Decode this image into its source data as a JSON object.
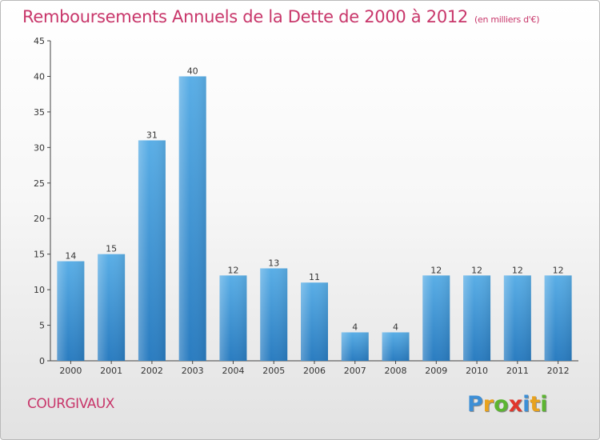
{
  "chart_data": {
    "type": "bar",
    "title": "Remboursements Annuels de la Dette de 2000 à 2012",
    "subtitle": "(en milliers d'€)",
    "categories": [
      "2000",
      "2001",
      "2002",
      "2003",
      "2004",
      "2005",
      "2006",
      "2007",
      "2008",
      "2009",
      "2010",
      "2011",
      "2012"
    ],
    "values": [
      14,
      15,
      31,
      40,
      12,
      13,
      11,
      4,
      4,
      12,
      12,
      12,
      12
    ],
    "ylim": [
      0,
      45
    ],
    "yticks": [
      0,
      5,
      10,
      15,
      20,
      25,
      30,
      35,
      40,
      45
    ],
    "xlabel": "",
    "ylabel": "",
    "grid": false,
    "colors": {
      "bar_top": "#5aaee6",
      "bar_bottom": "#2a7cc0",
      "title": "#c8366a"
    }
  },
  "footer": {
    "town": "COURGIVAUX",
    "logo_letters": [
      {
        "char": "P",
        "color": "#3d8fd6"
      },
      {
        "char": "r",
        "color": "#e8a21e"
      },
      {
        "char": "o",
        "color": "#5cb531"
      },
      {
        "char": "x",
        "color": "#e0362c"
      },
      {
        "char": "i",
        "color": "#3d8fd6"
      },
      {
        "char": "t",
        "color": "#e8a21e"
      },
      {
        "char": "i",
        "color": "#5cb531"
      }
    ]
  }
}
